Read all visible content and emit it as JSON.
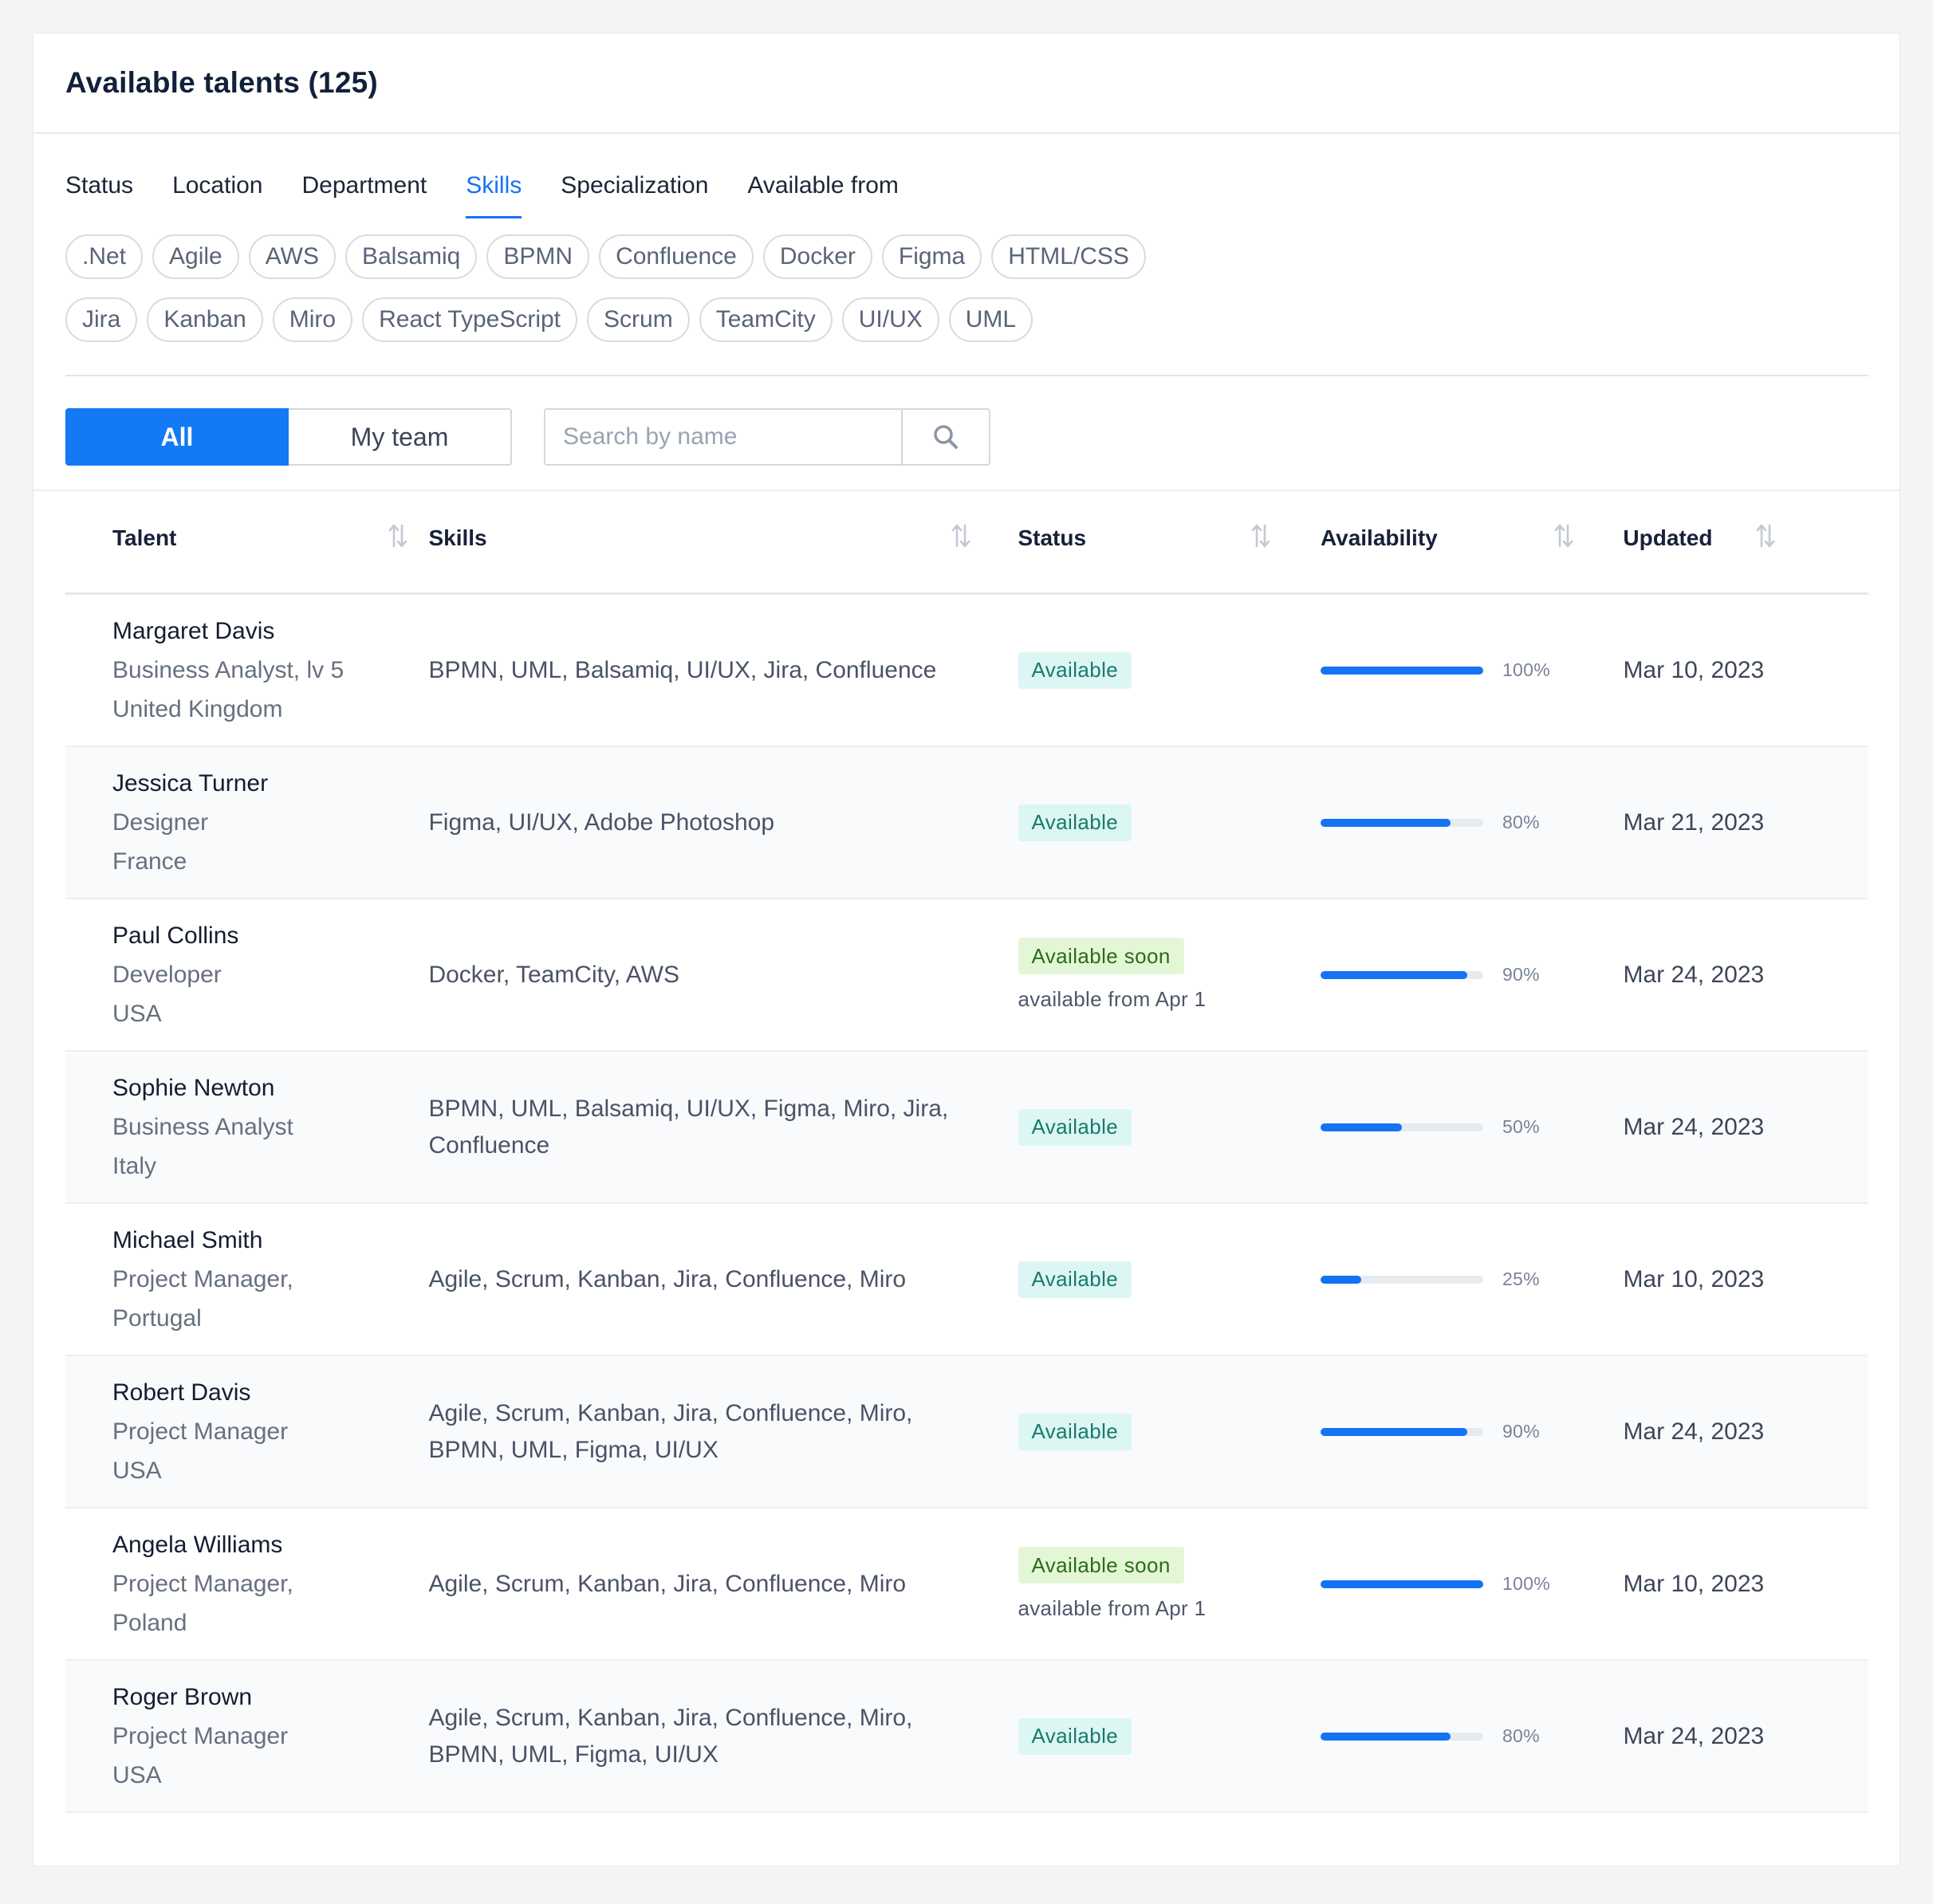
{
  "card": {
    "title": "Available talents (125)"
  },
  "tabs": [
    {
      "label": "Status"
    },
    {
      "label": "Location"
    },
    {
      "label": "Department"
    },
    {
      "label": "Skills",
      "active": true
    },
    {
      "label": "Specialization"
    },
    {
      "label": "Available from"
    }
  ],
  "chips_row1": [
    ".Net",
    "Agile",
    "AWS",
    "Balsamiq",
    "BPMN",
    "Confluence",
    "Docker",
    "Figma",
    "HTML/CSS"
  ],
  "chips_row2": [
    "Jira",
    "Kanban",
    "Miro",
    "React TypeScript",
    "Scrum",
    "TeamCity",
    "UI/UX",
    "UML"
  ],
  "segment": {
    "all": "All",
    "my_team": "My team",
    "active": "All"
  },
  "search": {
    "placeholder": "Search by name",
    "value": ""
  },
  "table": {
    "headers": {
      "talent": "Talent",
      "skills": "Skills",
      "status": "Status",
      "availability": "Availability",
      "updated": "Updated"
    },
    "rows": [
      {
        "name": "Margaret Davis",
        "role": "Business Analyst, lv 5",
        "country": "United Kingdom",
        "skills": "BPMN, UML, Balsamiq, UI/UX, Jira, Confluence",
        "status": "Available",
        "status_type": "available",
        "note": "",
        "availability": 100,
        "availability_label": "100%",
        "updated": "Mar 10, 2023"
      },
      {
        "name": "Jessica Turner",
        "role": "Designer",
        "country": "France",
        "skills": "Figma, UI/UX, Adobe Photoshop",
        "status": "Available",
        "status_type": "available",
        "note": "",
        "availability": 80,
        "availability_label": "80%",
        "updated": "Mar 21, 2023"
      },
      {
        "name": "Paul Collins",
        "role": "Developer",
        "country": "USA",
        "skills": "Docker, TeamCity, AWS",
        "status": "Available soon",
        "status_type": "soon",
        "note": "available from Apr 1",
        "availability": 90,
        "availability_label": "90%",
        "updated": "Mar 24, 2023"
      },
      {
        "name": "Sophie Newton",
        "role": "Business Analyst",
        "country": "Italy",
        "skills": "BPMN, UML, Balsamiq, UI/UX, Figma, Miro, Jira, Confluence",
        "status": "Available",
        "status_type": "available",
        "note": "",
        "availability": 50,
        "availability_label": "50%",
        "updated": "Mar 24, 2023"
      },
      {
        "name": "Michael Smith",
        "role": "Project Manager,",
        "country": "Portugal",
        "skills": "Agile, Scrum, Kanban, Jira, Confluence, Miro",
        "status": "Available",
        "status_type": "available",
        "note": "",
        "availability": 25,
        "availability_label": "25%",
        "updated": "Mar 10, 2023"
      },
      {
        "name": "Robert Davis",
        "role": "Project Manager",
        "country": "USA",
        "skills": "Agile, Scrum, Kanban, Jira, Confluence, Miro, BPMN, UML, Figma, UI/UX",
        "status": "Available",
        "status_type": "available",
        "note": "",
        "availability": 90,
        "availability_label": "90%",
        "updated": "Mar 24, 2023"
      },
      {
        "name": "Angela Williams",
        "role": "Project Manager,",
        "country": "Poland",
        "skills": "Agile, Scrum, Kanban, Jira, Confluence, Miro",
        "status": "Available soon",
        "status_type": "soon",
        "note": "available from Apr 1",
        "availability": 100,
        "availability_label": "100%",
        "updated": "Mar 10, 2023"
      },
      {
        "name": "Roger Brown",
        "role": "Project Manager",
        "country": "USA",
        "skills": "Agile, Scrum, Kanban, Jira, Confluence, Miro, BPMN, UML, Figma, UI/UX",
        "status": "Available",
        "status_type": "available",
        "note": "",
        "availability": 80,
        "availability_label": "80%",
        "updated": "Mar 24, 2023"
      }
    ]
  },
  "icons": {
    "search": "search-icon",
    "sort": "sort-arrows-icon"
  },
  "colors": {
    "accent": "#1479f5",
    "available_bg": "#dcf6f3",
    "soon_bg": "#e3f7d6"
  }
}
